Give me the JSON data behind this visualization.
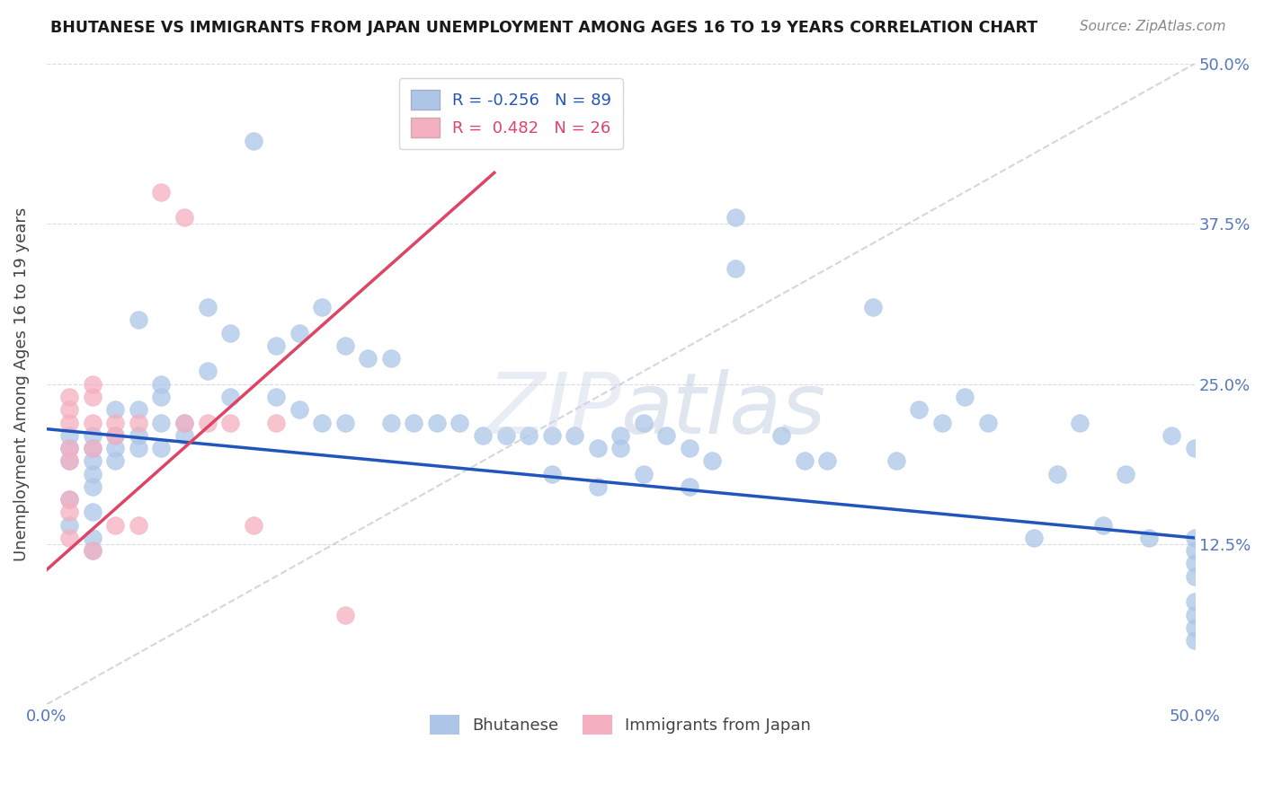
{
  "title": "BHUTANESE VS IMMIGRANTS FROM JAPAN UNEMPLOYMENT AMONG AGES 16 TO 19 YEARS CORRELATION CHART",
  "source": "Source: ZipAtlas.com",
  "ylabel": "Unemployment Among Ages 16 to 19 years",
  "xlim": [
    0.0,
    0.5
  ],
  "ylim": [
    0.0,
    0.5
  ],
  "xtick_vals": [
    0.0,
    0.125,
    0.25,
    0.375,
    0.5
  ],
  "ytick_vals": [
    0.125,
    0.25,
    0.375,
    0.5
  ],
  "xticklabels_bottom": [
    "0.0%",
    "",
    "",
    "",
    "50.0%"
  ],
  "yticklabels_right": [
    "12.5%",
    "25.0%",
    "37.5%",
    "50.0%"
  ],
  "R_blue": -0.256,
  "N_blue": 89,
  "R_pink": 0.482,
  "N_pink": 26,
  "blue_color": "#adc6e8",
  "pink_color": "#f4afc0",
  "blue_line_color": "#2255bb",
  "pink_line_color": "#dd4466",
  "diag_color": "#c8ccd8",
  "blue_line_x": [
    0.0,
    0.5
  ],
  "blue_line_y": [
    0.215,
    0.13
  ],
  "pink_line_x": [
    0.0,
    0.195
  ],
  "pink_line_y": [
    0.105,
    0.415
  ],
  "blue_x": [
    0.01,
    0.01,
    0.01,
    0.01,
    0.01,
    0.02,
    0.02,
    0.02,
    0.02,
    0.02,
    0.02,
    0.02,
    0.02,
    0.03,
    0.03,
    0.03,
    0.03,
    0.04,
    0.04,
    0.04,
    0.04,
    0.05,
    0.05,
    0.05,
    0.05,
    0.06,
    0.06,
    0.07,
    0.07,
    0.08,
    0.08,
    0.09,
    0.1,
    0.1,
    0.11,
    0.11,
    0.12,
    0.12,
    0.13,
    0.13,
    0.14,
    0.15,
    0.15,
    0.16,
    0.17,
    0.18,
    0.19,
    0.2,
    0.21,
    0.22,
    0.22,
    0.23,
    0.24,
    0.24,
    0.25,
    0.25,
    0.26,
    0.26,
    0.27,
    0.28,
    0.28,
    0.29,
    0.3,
    0.3,
    0.32,
    0.33,
    0.34,
    0.36,
    0.37,
    0.38,
    0.39,
    0.4,
    0.41,
    0.43,
    0.44,
    0.45,
    0.46,
    0.47,
    0.48,
    0.49,
    0.5,
    0.5,
    0.5,
    0.5,
    0.5,
    0.5,
    0.5,
    0.5,
    0.5
  ],
  "blue_y": [
    0.21,
    0.2,
    0.19,
    0.16,
    0.14,
    0.21,
    0.2,
    0.19,
    0.18,
    0.17,
    0.15,
    0.13,
    0.12,
    0.23,
    0.21,
    0.2,
    0.19,
    0.3,
    0.23,
    0.21,
    0.2,
    0.25,
    0.24,
    0.22,
    0.2,
    0.22,
    0.21,
    0.31,
    0.26,
    0.29,
    0.24,
    0.44,
    0.28,
    0.24,
    0.29,
    0.23,
    0.31,
    0.22,
    0.28,
    0.22,
    0.27,
    0.27,
    0.22,
    0.22,
    0.22,
    0.22,
    0.21,
    0.21,
    0.21,
    0.21,
    0.18,
    0.21,
    0.2,
    0.17,
    0.21,
    0.2,
    0.22,
    0.18,
    0.21,
    0.2,
    0.17,
    0.19,
    0.38,
    0.34,
    0.21,
    0.19,
    0.19,
    0.31,
    0.19,
    0.23,
    0.22,
    0.24,
    0.22,
    0.13,
    0.18,
    0.22,
    0.14,
    0.18,
    0.13,
    0.21,
    0.2,
    0.13,
    0.12,
    0.11,
    0.1,
    0.08,
    0.07,
    0.06,
    0.05
  ],
  "pink_x": [
    0.01,
    0.01,
    0.01,
    0.01,
    0.01,
    0.01,
    0.01,
    0.01,
    0.02,
    0.02,
    0.02,
    0.02,
    0.02,
    0.03,
    0.03,
    0.03,
    0.04,
    0.04,
    0.05,
    0.06,
    0.06,
    0.07,
    0.08,
    0.09,
    0.1,
    0.13
  ],
  "pink_y": [
    0.24,
    0.23,
    0.22,
    0.2,
    0.19,
    0.16,
    0.15,
    0.13,
    0.25,
    0.24,
    0.22,
    0.2,
    0.12,
    0.22,
    0.21,
    0.14,
    0.22,
    0.14,
    0.4,
    0.38,
    0.22,
    0.22,
    0.22,
    0.14,
    0.22,
    0.07
  ]
}
